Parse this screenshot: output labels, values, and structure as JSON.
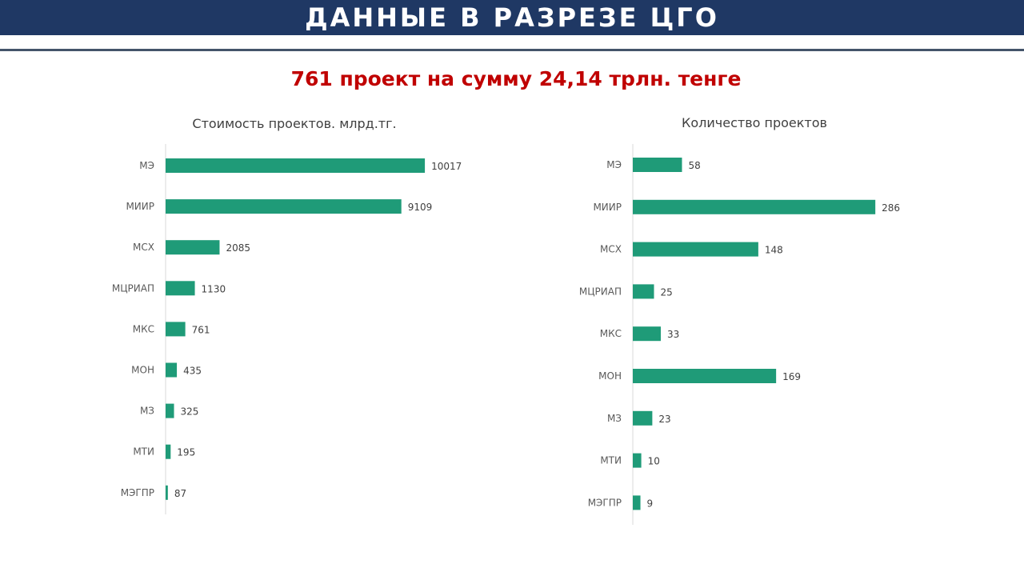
{
  "header": {
    "title": "ДАННЫЕ В РАЗРЕЗЕ ЦГО",
    "background": "#1f3864"
  },
  "subtitle": "761 проект на сумму 24,14 трлн. тенге",
  "colors": {
    "bar": "#1f9b78",
    "subtitle": "#c00000",
    "axis": "#d9d9d9"
  },
  "chart_data": [
    {
      "type": "bar",
      "orientation": "horizontal",
      "title": "Стоимость проектов. млрд.тг.",
      "categories": [
        "МЭ",
        "МИИР",
        "МСХ",
        "МЦРИАП",
        "МКС",
        "МОН",
        "МЗ",
        "МТИ",
        "МЭГПР"
      ],
      "values": [
        10017,
        9109,
        2085,
        1130,
        761,
        435,
        325,
        195,
        87
      ],
      "xlim": [
        0,
        17000
      ],
      "grid": false,
      "data_labels": true
    },
    {
      "type": "bar",
      "orientation": "horizontal",
      "title": "Количество проектов",
      "categories": [
        "МЭ",
        "МИИР",
        "МСХ",
        "МЦРИАП",
        "МКС",
        "МОН",
        "МЗ",
        "МТИ",
        "МЭГПР"
      ],
      "values": [
        58,
        286,
        148,
        25,
        33,
        169,
        23,
        10,
        9
      ],
      "xlim": [
        0,
        400
      ],
      "grid": false,
      "data_labels": true
    }
  ]
}
